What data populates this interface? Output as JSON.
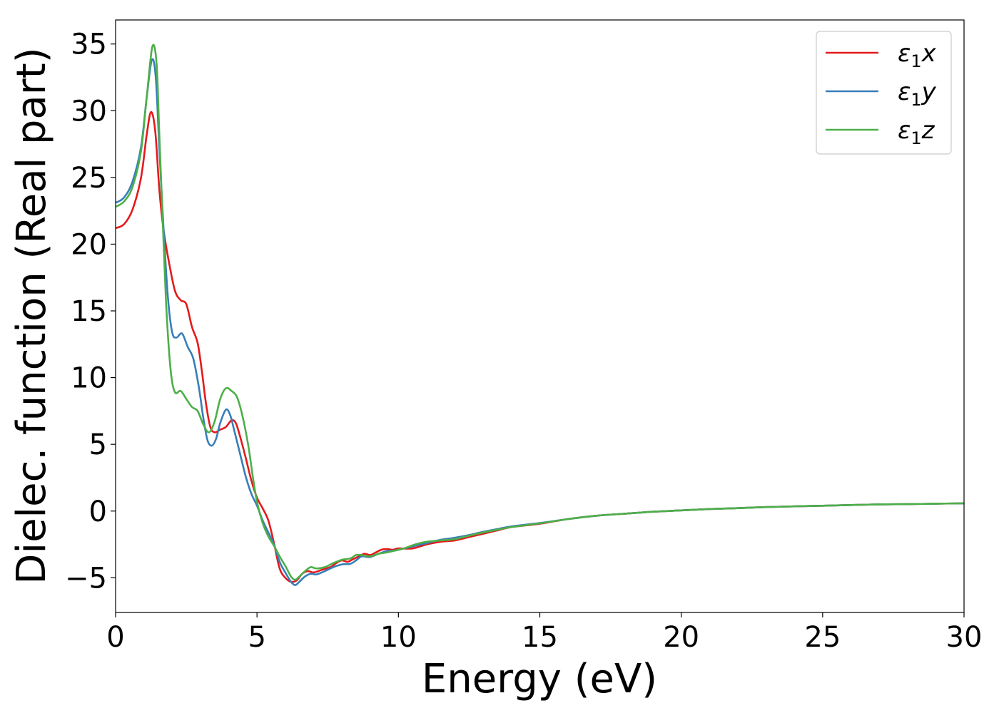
{
  "chart_data": {
    "type": "line",
    "title": "",
    "xlabel": "Energy (eV)",
    "ylabel": "Dielec. function (Real part)",
    "xlim": [
      0,
      30
    ],
    "ylim": [
      -7.6,
      36.8
    ],
    "xticks": [
      0,
      5,
      10,
      15,
      20,
      25,
      30
    ],
    "xtick_labels": [
      "0",
      "5",
      "10",
      "15",
      "20",
      "25",
      "30"
    ],
    "yticks": [
      -5,
      0,
      5,
      10,
      15,
      20,
      25,
      30,
      35
    ],
    "ytick_labels": [
      "−5",
      "0",
      "5",
      "10",
      "15",
      "20",
      "25",
      "30",
      "35"
    ],
    "grid": false,
    "legend_position": "top-right",
    "series": [
      {
        "name": "ε₁x",
        "legend_base": "ε",
        "legend_sub": "1",
        "legend_axis": "x",
        "color": "#e41a1c",
        "points": [
          [
            0,
            21.2
          ],
          [
            0.3,
            21.5
          ],
          [
            0.6,
            22.6
          ],
          [
            0.9,
            25.0
          ],
          [
            1.1,
            28.2
          ],
          [
            1.25,
            29.9
          ],
          [
            1.4,
            28.5
          ],
          [
            1.55,
            24.0
          ],
          [
            1.7,
            21.0
          ],
          [
            1.9,
            18.5
          ],
          [
            2.1,
            16.5
          ],
          [
            2.3,
            15.8
          ],
          [
            2.5,
            15.5
          ],
          [
            2.7,
            13.8
          ],
          [
            2.9,
            12.6
          ],
          [
            3.05,
            10.5
          ],
          [
            3.2,
            8.0
          ],
          [
            3.35,
            6.3
          ],
          [
            3.5,
            5.9
          ],
          [
            3.7,
            6.1
          ],
          [
            3.9,
            6.3
          ],
          [
            4.1,
            6.8
          ],
          [
            4.25,
            6.6
          ],
          [
            4.4,
            5.6
          ],
          [
            4.6,
            4.0
          ],
          [
            4.8,
            2.3
          ],
          [
            5.0,
            1.0
          ],
          [
            5.2,
            0.2
          ],
          [
            5.4,
            -0.7
          ],
          [
            5.6,
            -2.4
          ],
          [
            5.8,
            -4.3
          ],
          [
            6.0,
            -5.0
          ],
          [
            6.2,
            -5.3
          ],
          [
            6.4,
            -5.2
          ],
          [
            6.6,
            -4.7
          ],
          [
            6.8,
            -4.5
          ],
          [
            7.0,
            -4.6
          ],
          [
            7.3,
            -4.4
          ],
          [
            7.6,
            -4.2
          ],
          [
            7.8,
            -3.9
          ],
          [
            8.0,
            -3.7
          ],
          [
            8.2,
            -3.8
          ],
          [
            8.4,
            -3.6
          ],
          [
            8.6,
            -3.4
          ],
          [
            8.8,
            -3.2
          ],
          [
            9.0,
            -3.3
          ],
          [
            9.2,
            -3.1
          ],
          [
            9.4,
            -2.9
          ],
          [
            9.6,
            -2.85
          ],
          [
            9.8,
            -2.9
          ],
          [
            10.0,
            -2.8
          ],
          [
            10.5,
            -2.8
          ],
          [
            11.0,
            -2.5
          ],
          [
            11.5,
            -2.3
          ],
          [
            12.0,
            -2.2
          ],
          [
            12.5,
            -1.95
          ],
          [
            13.0,
            -1.7
          ],
          [
            13.5,
            -1.45
          ],
          [
            14.0,
            -1.2
          ],
          [
            15.0,
            -0.95
          ],
          [
            16.0,
            -0.6
          ],
          [
            17.0,
            -0.35
          ],
          [
            18.0,
            -0.2
          ],
          [
            19.0,
            -0.05
          ],
          [
            20.0,
            0.05
          ],
          [
            21.0,
            0.15
          ],
          [
            22.0,
            0.22
          ],
          [
            23.0,
            0.3
          ],
          [
            24.0,
            0.35
          ],
          [
            25.0,
            0.4
          ],
          [
            26.0,
            0.45
          ],
          [
            27.0,
            0.5
          ],
          [
            28.0,
            0.52
          ],
          [
            29.0,
            0.55
          ],
          [
            30.0,
            0.58
          ]
        ]
      },
      {
        "name": "ε₁y",
        "legend_base": "ε",
        "legend_sub": "1",
        "legend_axis": "y",
        "color": "#377eb8",
        "points": [
          [
            0,
            23.1
          ],
          [
            0.3,
            23.5
          ],
          [
            0.6,
            24.7
          ],
          [
            0.9,
            27.3
          ],
          [
            1.1,
            31.0
          ],
          [
            1.28,
            33.8
          ],
          [
            1.42,
            32.5
          ],
          [
            1.55,
            27.0
          ],
          [
            1.7,
            21.0
          ],
          [
            1.85,
            16.0
          ],
          [
            2.0,
            13.4
          ],
          [
            2.15,
            13.0
          ],
          [
            2.35,
            13.3
          ],
          [
            2.55,
            12.3
          ],
          [
            2.75,
            11.4
          ],
          [
            2.95,
            9.2
          ],
          [
            3.1,
            7.0
          ],
          [
            3.25,
            5.3
          ],
          [
            3.4,
            4.9
          ],
          [
            3.55,
            5.4
          ],
          [
            3.7,
            6.6
          ],
          [
            3.9,
            7.6
          ],
          [
            4.05,
            7.2
          ],
          [
            4.2,
            6.0
          ],
          [
            4.4,
            4.3
          ],
          [
            4.6,
            2.6
          ],
          [
            4.8,
            1.3
          ],
          [
            5.0,
            0.4
          ],
          [
            5.2,
            -0.7
          ],
          [
            5.4,
            -1.6
          ],
          [
            5.6,
            -2.5
          ],
          [
            5.8,
            -3.8
          ],
          [
            6.0,
            -4.6
          ],
          [
            6.2,
            -5.3
          ],
          [
            6.35,
            -5.55
          ],
          [
            6.5,
            -5.3
          ],
          [
            6.7,
            -4.9
          ],
          [
            6.9,
            -4.7
          ],
          [
            7.1,
            -4.75
          ],
          [
            7.4,
            -4.5
          ],
          [
            7.7,
            -4.2
          ],
          [
            8.0,
            -4.0
          ],
          [
            8.3,
            -3.95
          ],
          [
            8.5,
            -3.7
          ],
          [
            8.7,
            -3.4
          ],
          [
            9.0,
            -3.45
          ],
          [
            9.3,
            -3.2
          ],
          [
            9.6,
            -3.0
          ],
          [
            9.9,
            -2.95
          ],
          [
            10.2,
            -2.8
          ],
          [
            10.6,
            -2.6
          ],
          [
            11.0,
            -2.4
          ],
          [
            11.5,
            -2.15
          ],
          [
            12.0,
            -2.0
          ],
          [
            12.5,
            -1.8
          ],
          [
            13.0,
            -1.55
          ],
          [
            13.5,
            -1.35
          ],
          [
            14.0,
            -1.15
          ],
          [
            15.0,
            -0.9
          ],
          [
            16.0,
            -0.6
          ],
          [
            17.0,
            -0.35
          ],
          [
            18.0,
            -0.2
          ],
          [
            19.0,
            -0.05
          ],
          [
            20.0,
            0.05
          ],
          [
            21.0,
            0.15
          ],
          [
            22.0,
            0.22
          ],
          [
            23.0,
            0.3
          ],
          [
            24.0,
            0.35
          ],
          [
            25.0,
            0.4
          ],
          [
            26.0,
            0.45
          ],
          [
            27.0,
            0.5
          ],
          [
            28.0,
            0.52
          ],
          [
            29.0,
            0.55
          ],
          [
            30.0,
            0.58
          ]
        ]
      },
      {
        "name": "ε₁z",
        "legend_base": "ε",
        "legend_sub": "1",
        "legend_axis": "z",
        "color": "#4daf4a",
        "points": [
          [
            0,
            22.8
          ],
          [
            0.3,
            23.2
          ],
          [
            0.6,
            24.3
          ],
          [
            0.9,
            27.0
          ],
          [
            1.1,
            31.0
          ],
          [
            1.3,
            34.8
          ],
          [
            1.45,
            33.5
          ],
          [
            1.55,
            28.0
          ],
          [
            1.68,
            21.0
          ],
          [
            1.8,
            15.0
          ],
          [
            1.95,
            10.5
          ],
          [
            2.1,
            8.9
          ],
          [
            2.3,
            9.0
          ],
          [
            2.5,
            8.4
          ],
          [
            2.7,
            7.8
          ],
          [
            2.9,
            7.5
          ],
          [
            3.1,
            6.5
          ],
          [
            3.3,
            5.9
          ],
          [
            3.5,
            6.7
          ],
          [
            3.7,
            8.4
          ],
          [
            3.9,
            9.2
          ],
          [
            4.1,
            9.0
          ],
          [
            4.3,
            8.5
          ],
          [
            4.5,
            7.0
          ],
          [
            4.7,
            4.8
          ],
          [
            4.85,
            2.6
          ],
          [
            5.0,
            0.7
          ],
          [
            5.2,
            -0.9
          ],
          [
            5.4,
            -1.9
          ],
          [
            5.6,
            -2.6
          ],
          [
            5.8,
            -3.4
          ],
          [
            6.0,
            -4.1
          ],
          [
            6.2,
            -4.9
          ],
          [
            6.35,
            -5.15
          ],
          [
            6.5,
            -4.9
          ],
          [
            6.7,
            -4.5
          ],
          [
            6.9,
            -4.2
          ],
          [
            7.1,
            -4.3
          ],
          [
            7.4,
            -4.2
          ],
          [
            7.7,
            -3.9
          ],
          [
            8.0,
            -3.65
          ],
          [
            8.3,
            -3.55
          ],
          [
            8.5,
            -3.3
          ],
          [
            8.7,
            -3.3
          ],
          [
            9.0,
            -3.4
          ],
          [
            9.3,
            -3.2
          ],
          [
            9.6,
            -3.1
          ],
          [
            9.9,
            -2.95
          ],
          [
            10.2,
            -2.8
          ],
          [
            10.6,
            -2.5
          ],
          [
            11.0,
            -2.3
          ],
          [
            11.5,
            -2.2
          ],
          [
            12.0,
            -2.1
          ],
          [
            12.5,
            -1.85
          ],
          [
            13.0,
            -1.6
          ],
          [
            13.5,
            -1.4
          ],
          [
            14.0,
            -1.2
          ],
          [
            15.0,
            -0.92
          ],
          [
            16.0,
            -0.6
          ],
          [
            17.0,
            -0.35
          ],
          [
            18.0,
            -0.2
          ],
          [
            19.0,
            -0.05
          ],
          [
            20.0,
            0.05
          ],
          [
            21.0,
            0.15
          ],
          [
            22.0,
            0.22
          ],
          [
            23.0,
            0.3
          ],
          [
            24.0,
            0.35
          ],
          [
            25.0,
            0.4
          ],
          [
            26.0,
            0.45
          ],
          [
            27.0,
            0.5
          ],
          [
            28.0,
            0.52
          ],
          [
            29.0,
            0.55
          ],
          [
            30.0,
            0.58
          ]
        ]
      }
    ]
  }
}
